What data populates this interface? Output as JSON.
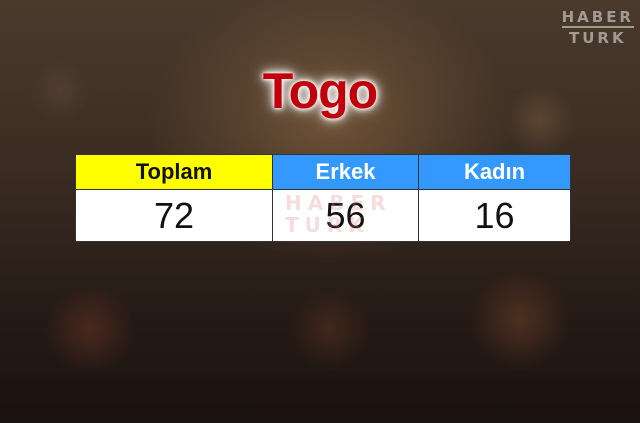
{
  "brand": {
    "line1": "HABER",
    "line2": "TURK"
  },
  "title": "Togo",
  "table": {
    "headers": [
      "Toplam",
      "Erkek",
      "Kadın"
    ],
    "values": [
      "72",
      "56",
      "16"
    ],
    "colors": {
      "toplam": "#ffff00",
      "erkek": "#3399ff",
      "kadin": "#3399ff",
      "title": "#c0000a"
    }
  }
}
